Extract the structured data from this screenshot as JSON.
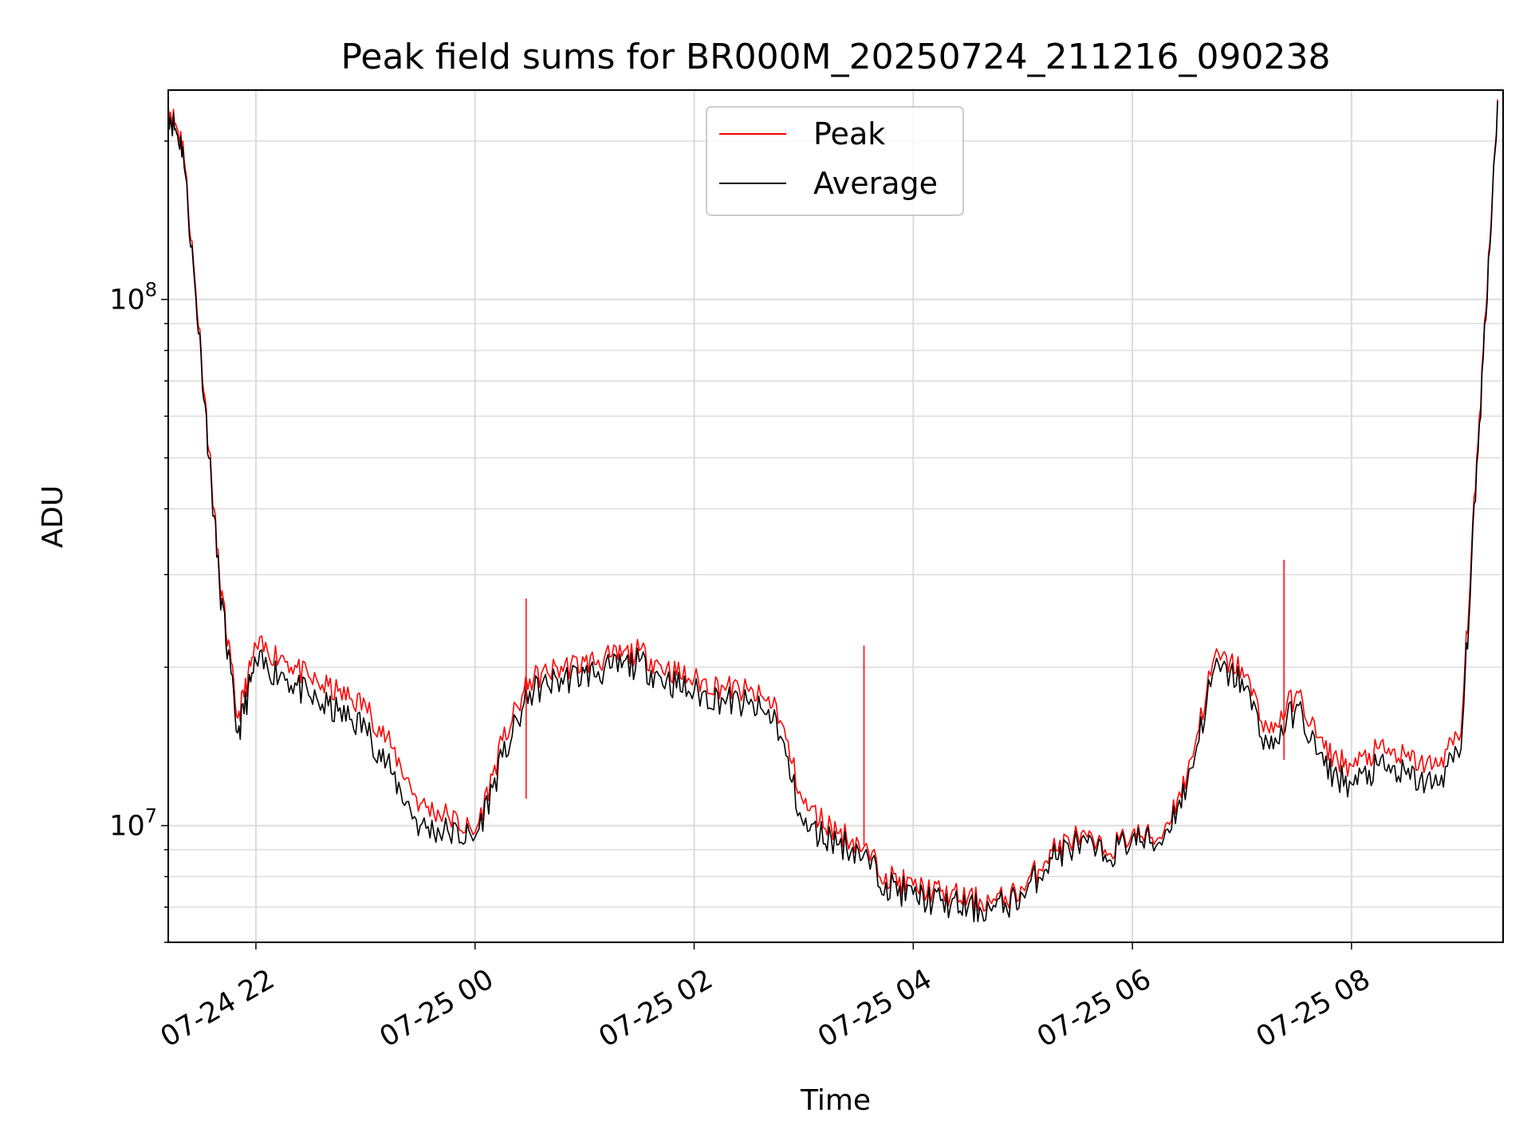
{
  "chart_data": {
    "type": "line",
    "title": "Peak field sums for BR000M_20250724_211216_090238",
    "xlabel": "Time",
    "ylabel": "ADU",
    "y_scale": "log",
    "ylim": [
      6000000,
      250000000
    ],
    "xlim": [
      "2025-07-24 21:12",
      "2025-07-25 09:23"
    ],
    "x_ticks": [
      "2025-07-24 22:00",
      "2025-07-25 00:00",
      "2025-07-25 02:00",
      "2025-07-25 04:00",
      "2025-07-25 06:00",
      "2025-07-25 08:00"
    ],
    "x_tick_labels": [
      "07-24 22",
      "07-25 00",
      "07-25 02",
      "07-25 04",
      "07-25 06",
      "07-25 08"
    ],
    "y_tick_labels": [
      {
        "base": "10",
        "exp": "7"
      },
      {
        "base": "10",
        "exp": "8"
      }
    ],
    "grid": true,
    "legend_position": "top-center",
    "colors": {
      "Peak": "#ff0000",
      "Average": "#000000"
    },
    "x": [
      "2025-07-24 21:12",
      "2025-07-24 21:20",
      "2025-07-24 21:30",
      "2025-07-24 21:40",
      "2025-07-24 21:50",
      "2025-07-24 22:00",
      "2025-07-24 22:15",
      "2025-07-24 22:30",
      "2025-07-24 22:45",
      "2025-07-24 23:00",
      "2025-07-24 23:15",
      "2025-07-24 23:30",
      "2025-07-24 23:45",
      "2025-07-25 00:00",
      "2025-07-25 00:15",
      "2025-07-25 00:30",
      "2025-07-25 00:45",
      "2025-07-25 01:00",
      "2025-07-25 01:15",
      "2025-07-25 01:30",
      "2025-07-25 01:45",
      "2025-07-25 02:00",
      "2025-07-25 02:15",
      "2025-07-25 02:30",
      "2025-07-25 02:45",
      "2025-07-25 03:00",
      "2025-07-25 03:15",
      "2025-07-25 03:30",
      "2025-07-25 03:45",
      "2025-07-25 04:00",
      "2025-07-25 04:15",
      "2025-07-25 04:30",
      "2025-07-25 04:45",
      "2025-07-25 05:00",
      "2025-07-25 05:15",
      "2025-07-25 05:30",
      "2025-07-25 05:45",
      "2025-07-25 06:00",
      "2025-07-25 06:15",
      "2025-07-25 06:30",
      "2025-07-25 06:45",
      "2025-07-25 07:00",
      "2025-07-25 07:15",
      "2025-07-25 07:30",
      "2025-07-25 07:45",
      "2025-07-25 08:00",
      "2025-07-25 08:15",
      "2025-07-25 08:30",
      "2025-07-25 08:45",
      "2025-07-25 09:00",
      "2025-07-25 09:10",
      "2025-07-25 09:20"
    ],
    "series": [
      {
        "name": "Peak",
        "values": [
          235000000,
          200000000,
          80000000,
          30000000,
          16000000,
          22000000,
          21000000,
          19000000,
          18000000,
          17000000,
          14000000,
          11000000,
          10500000,
          9700000,
          14500000,
          19000000,
          20000000,
          20500000,
          21000000,
          21500000,
          20000000,
          19000000,
          18500000,
          18000000,
          17000000,
          11000000,
          10000000,
          9300000,
          8100000,
          7700000,
          7500000,
          7300000,
          7200000,
          7600000,
          9000000,
          9600000,
          9000000,
          9700000,
          9500000,
          12500000,
          21000000,
          20000000,
          15000000,
          18000000,
          14000000,
          13000000,
          14000000,
          13500000,
          13000000,
          15000000,
          60000000,
          240000000
        ]
      },
      {
        "name": "Average",
        "values": [
          230000000,
          195000000,
          78000000,
          29000000,
          15000000,
          20500000,
          19500000,
          17500000,
          16500000,
          15500000,
          12500000,
          10000000,
          9800000,
          9500000,
          13500000,
          18000000,
          19000000,
          19500000,
          20000000,
          20500000,
          19000000,
          18000000,
          17500000,
          17000000,
          16000000,
          10000000,
          9500000,
          9000000,
          7800000,
          7400000,
          7200000,
          7000000,
          7000000,
          7400000,
          8700000,
          9300000,
          8800000,
          9500000,
          9300000,
          12000000,
          20000000,
          19000000,
          14000000,
          17000000,
          13000000,
          12000000,
          13000000,
          12500000,
          12000000,
          14000000,
          58000000,
          238000000
        ]
      }
    ],
    "annotations": [
      {
        "x": "2025-07-25 03:33",
        "series": "Peak",
        "value": 22000000
      },
      {
        "x": "2025-07-25 07:23",
        "series": "Peak",
        "value": 32000000
      },
      {
        "x": "2025-07-25 00:28",
        "series": "Peak",
        "value": 27000000
      }
    ]
  }
}
